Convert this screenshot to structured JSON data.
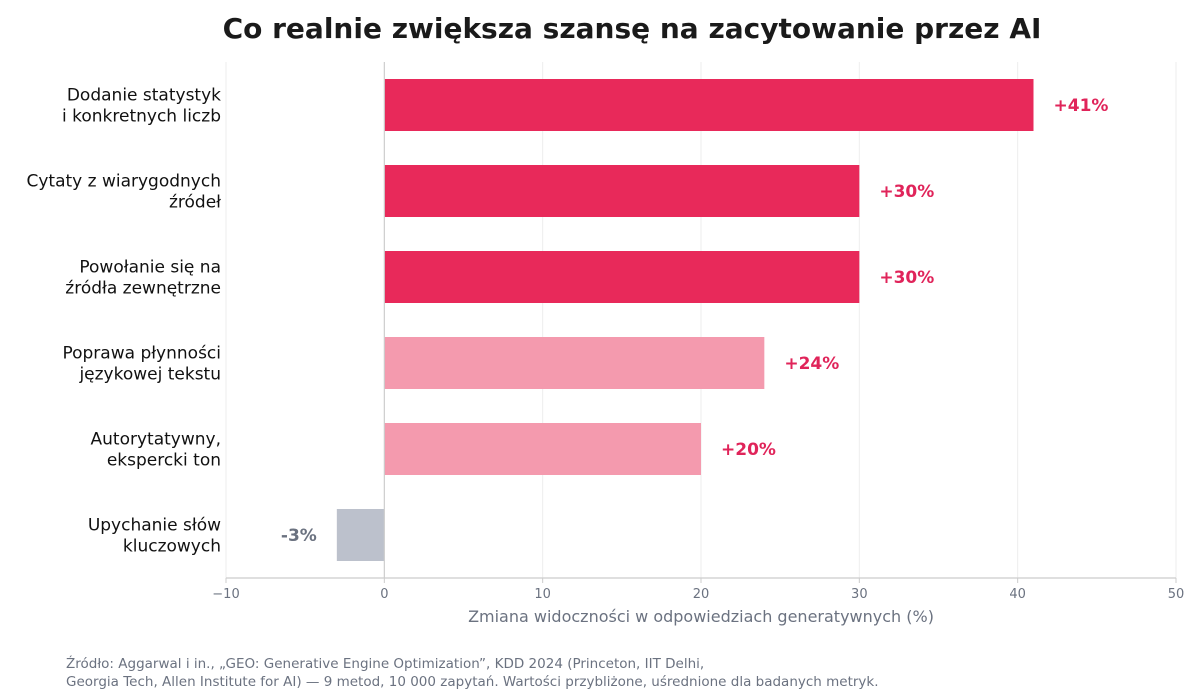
{
  "colors": {
    "strong": "#e8295a",
    "medium": "#f49aae",
    "negative": "#bcc1cc",
    "strong_label": "#e0245a",
    "negative_label": "#6b7280",
    "grid": "#eeeeee",
    "axis": "#cccccc"
  },
  "chart_data": {
    "type": "bar",
    "orientation": "horizontal",
    "title": "Co realnie zwiększa szansę na zacytowanie przez AI",
    "xlabel": "Zmiana widoczności w odpowiedziach generatywnych (%)",
    "xlim": [
      -10,
      50
    ],
    "xticks": [
      -10,
      0,
      10,
      20,
      30,
      40,
      50
    ],
    "xtick_labels": [
      "−10",
      "0",
      "10",
      "20",
      "30",
      "40",
      "50"
    ],
    "grid": true,
    "categories": [
      [
        "Dodanie statystyk",
        "i konkretnych liczb"
      ],
      [
        "Cytaty z wiarygodnych",
        "źródeł"
      ],
      [
        "Powołanie się na",
        "źródła zewnętrzne"
      ],
      [
        "Poprawa płynności",
        "językowej tekstu"
      ],
      [
        "Autorytatywny,",
        "ekspercki ton"
      ],
      [
        "Upychanie słów",
        "kluczowych"
      ]
    ],
    "values": [
      41,
      30,
      30,
      24,
      20,
      -3
    ],
    "value_labels": [
      "+41%",
      "+30%",
      "+30%",
      "+24%",
      "+20%",
      "-3%"
    ],
    "bar_colors": [
      "#e8295a",
      "#e8295a",
      "#e8295a",
      "#f49aae",
      "#f49aae",
      "#bcc1cc"
    ]
  },
  "source": {
    "line1": "Źródło: Aggarwal i in., „GEO: Generative Engine Optimization”, KDD 2024 (Princeton, IIT Delhi,",
    "line2": "Georgia Tech, Allen Institute for AI) — 9 metod, 10 000 zapytań. Wartości przybliżone, uśrednione dla badanych metryk."
  }
}
